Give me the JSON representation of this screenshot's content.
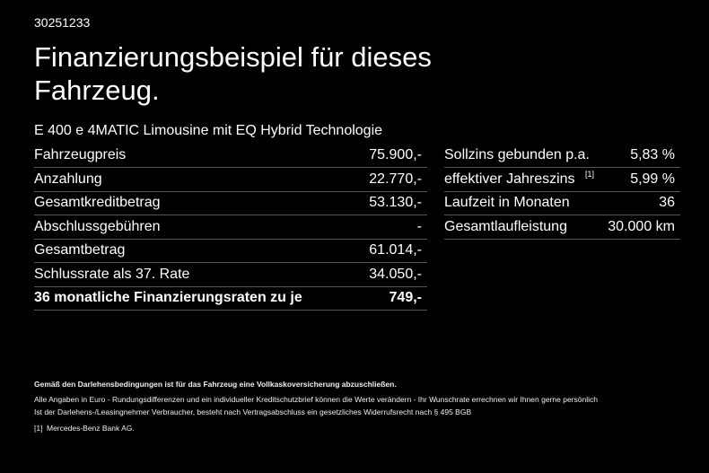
{
  "header": {
    "id": "30251233",
    "title": "Finanzierungsbeispiel für dieses Fahrzeug.",
    "model": "E 400 e 4MATIC Limousine mit EQ Hybrid Technologie"
  },
  "left_table": {
    "rows": [
      [
        "Fahrzeugpreis",
        "75.900,-"
      ],
      [
        "Anzahlung",
        "22.770,-"
      ],
      [
        "Gesamtkreditbetrag",
        "53.130,-"
      ],
      [
        "Abschlussgebühren",
        "-"
      ],
      [
        "Gesamtbetrag",
        "61.014,-"
      ],
      [
        "Schlussrate als 37. Rate",
        "34.050,-"
      ],
      [
        "36 monatliche Finanzierungsraten zu je",
        "749,-"
      ]
    ]
  },
  "right_table": {
    "rows": [
      [
        "Sollzins gebunden p.a.",
        "5,83 %"
      ],
      [
        "effektiver Jahreszins",
        "5,99 %"
      ],
      [
        "Laufzeit in Monaten",
        "36"
      ],
      [
        "Gesamtlaufleistung",
        "30.000 km"
      ]
    ],
    "footnote_marker": "[1]"
  },
  "footer": {
    "notice": "Gemäß den Darlehensbedingungen ist für das Fahrzeug eine Vollkaskoversicherung abzuschließen.",
    "lines": [
      "Alle Angaben in Euro - Rundungsdifferenzen und ein individueller Kreditschutzbrief können die Werte verändern - Ihr Wunschrate errechnen wir Ihnen gerne persönlich",
      "Ist der Darlehens-/Leasingnehmer Verbraucher, besteht nach Vertragsabschluss ein gesetzliches Widerrufsrecht nach § 495 BGB"
    ],
    "footnote_marker": "[1]",
    "footnote_text": "Mercedes-Benz Bank AG."
  }
}
